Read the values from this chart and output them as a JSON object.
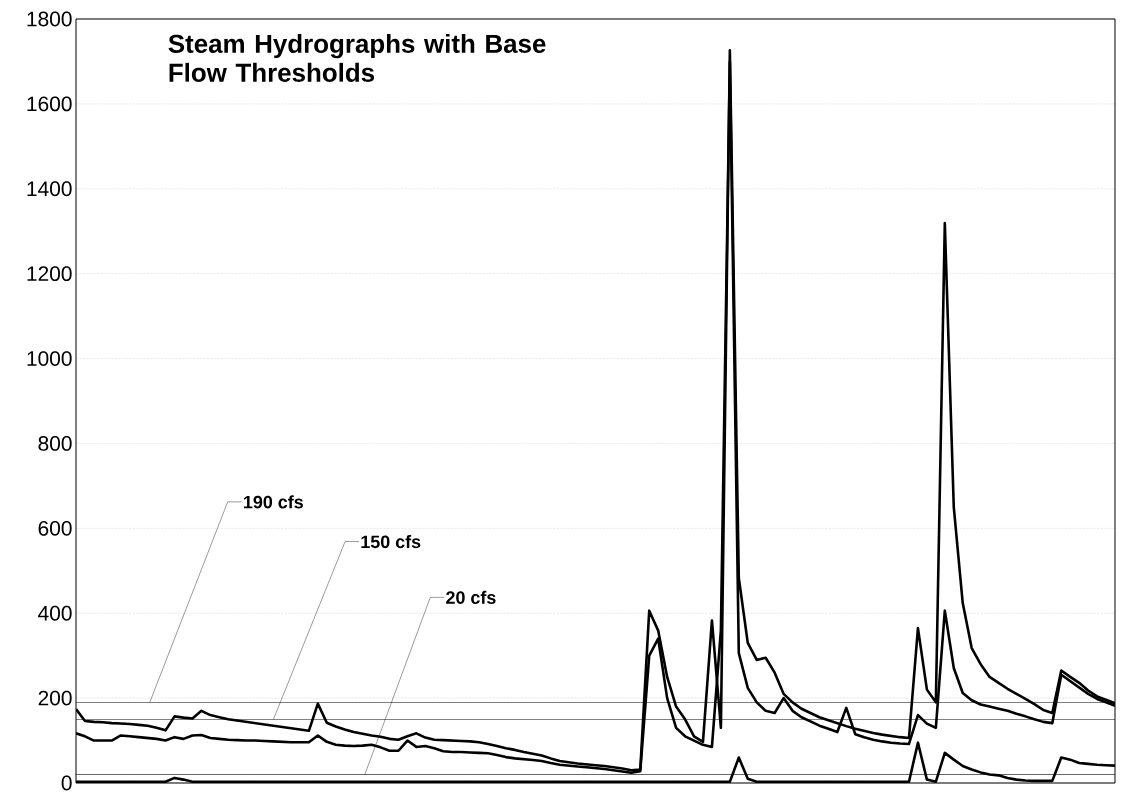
{
  "chart_data": {
    "type": "line",
    "title": "Steam Hydrographs with Base Flow Thresholds",
    "categories": [
      null,
      null,
      null,
      null,
      null,
      null,
      null,
      null,
      null,
      null,
      null,
      null,
      null,
      null,
      null,
      null,
      null,
      null,
      null,
      null,
      null,
      null,
      null,
      null,
      null,
      null,
      null,
      null,
      null,
      null,
      null,
      null,
      null,
      null,
      null,
      null,
      null,
      null,
      null,
      null,
      null,
      null,
      null,
      null,
      null,
      null,
      null,
      null,
      null,
      null,
      null,
      null,
      null,
      null,
      null,
      null,
      null,
      null,
      null,
      null,
      null,
      null,
      null,
      null,
      null,
      null,
      null,
      null,
      null,
      null,
      null,
      null,
      null,
      null,
      null,
      null,
      null,
      null,
      null,
      null,
      null,
      null,
      null,
      null,
      null,
      null,
      null,
      null,
      null,
      null,
      null,
      null,
      null,
      null,
      null,
      null,
      null,
      null,
      null,
      null,
      null,
      null,
      null,
      null,
      null,
      null,
      null,
      null,
      null,
      null,
      null,
      null,
      null,
      null,
      null,
      null,
      null
    ],
    "series": [
      {
        "color": "#000000",
        "values": [
          174,
          146,
          144,
          143,
          141,
          140,
          139,
          137,
          135,
          130,
          124,
          157,
          154,
          152,
          170,
          160,
          155,
          150,
          147,
          144,
          141,
          138,
          135,
          132,
          129,
          126,
          123,
          187,
          142,
          133,
          126,
          120,
          116,
          112,
          109,
          104,
          102,
          110,
          117,
          107,
          102,
          101,
          100,
          99,
          98,
          96,
          92,
          87,
          82,
          78,
          73,
          69,
          65,
          58,
          52,
          49,
          46,
          44,
          42,
          40,
          37,
          34,
          30,
          32,
          406,
          359,
          250,
          180,
          150,
          110,
          97,
          383,
          130,
          1726,
          483,
          330,
          290,
          295,
          260,
          210,
          190,
          175,
          165,
          155,
          148,
          141,
          134,
          128,
          123,
          118,
          114,
          111,
          108,
          106,
          365,
          220,
          190,
          1319,
          650,
          424,
          318,
          280,
          250,
          236,
          222,
          210,
          198,
          186,
          172,
          165,
          265,
          250,
          236,
          218,
          204,
          196,
          188
        ]
      },
      {
        "color": "#000000",
        "values": [
          117,
          110,
          100,
          100,
          100,
          112,
          110,
          108,
          106,
          104,
          100,
          108,
          104,
          112,
          113,
          106,
          104,
          102,
          101,
          100,
          100,
          99,
          98,
          97,
          96,
          96,
          96,
          112,
          97,
          90,
          88,
          87,
          88,
          90,
          84,
          76,
          76,
          100,
          85,
          87,
          82,
          75,
          73,
          73,
          72,
          71,
          70,
          66,
          61,
          58,
          56,
          54,
          52,
          47,
          43,
          41,
          39,
          37,
          35,
          33,
          30,
          27,
          24,
          28,
          300,
          340,
          200,
          130,
          110,
          100,
          90,
          85,
          360,
          1700,
          306,
          224,
          190,
          170,
          165,
          200,
          170,
          155,
          145,
          135,
          128,
          120,
          177,
          115,
          108,
          102,
          98,
          95,
          93,
          92,
          160,
          140,
          130,
          406,
          271,
          212,
          195,
          185,
          180,
          175,
          170,
          163,
          157,
          150,
          144,
          141,
          255,
          240,
          225,
          210,
          198,
          190,
          182
        ]
      },
      {
        "color": "#000000",
        "values": [
          3,
          3,
          3,
          3,
          3,
          3,
          3,
          3,
          3,
          3,
          3,
          12,
          8,
          3,
          3,
          3,
          3,
          3,
          3,
          3,
          3,
          3,
          3,
          3,
          3,
          3,
          3,
          3,
          3,
          3,
          3,
          3,
          3,
          3,
          3,
          3,
          3,
          3,
          3,
          3,
          3,
          3,
          3,
          3,
          3,
          3,
          3,
          3,
          3,
          3,
          3,
          3,
          3,
          3,
          3,
          3,
          3,
          3,
          3,
          3,
          3,
          3,
          3,
          3,
          3,
          3,
          3,
          3,
          3,
          3,
          3,
          3,
          3,
          3,
          60,
          10,
          3,
          3,
          3,
          3,
          3,
          3,
          3,
          3,
          3,
          3,
          3,
          3,
          3,
          3,
          3,
          3,
          3,
          3,
          95,
          8,
          3,
          71,
          55,
          40,
          32,
          25,
          20,
          18,
          12,
          8,
          6,
          5,
          5,
          5,
          60,
          55,
          47,
          45,
          43,
          42,
          41
        ]
      }
    ],
    "ref_lines": [
      {
        "axis": "y",
        "value": 190,
        "label": "190 cfs",
        "color": "#000000"
      },
      {
        "axis": "y",
        "value": 150,
        "label": "150 cfs",
        "color": "#000000"
      },
      {
        "axis": "y",
        "value": 20,
        "label": "20 cfs",
        "color": "#000000"
      }
    ],
    "ylim": [
      0,
      1800
    ],
    "yticks": [
      0,
      200,
      400,
      600,
      800,
      1000,
      1200,
      1400,
      1600,
      1800
    ],
    "grid": "y",
    "tick_labels": "y"
  }
}
